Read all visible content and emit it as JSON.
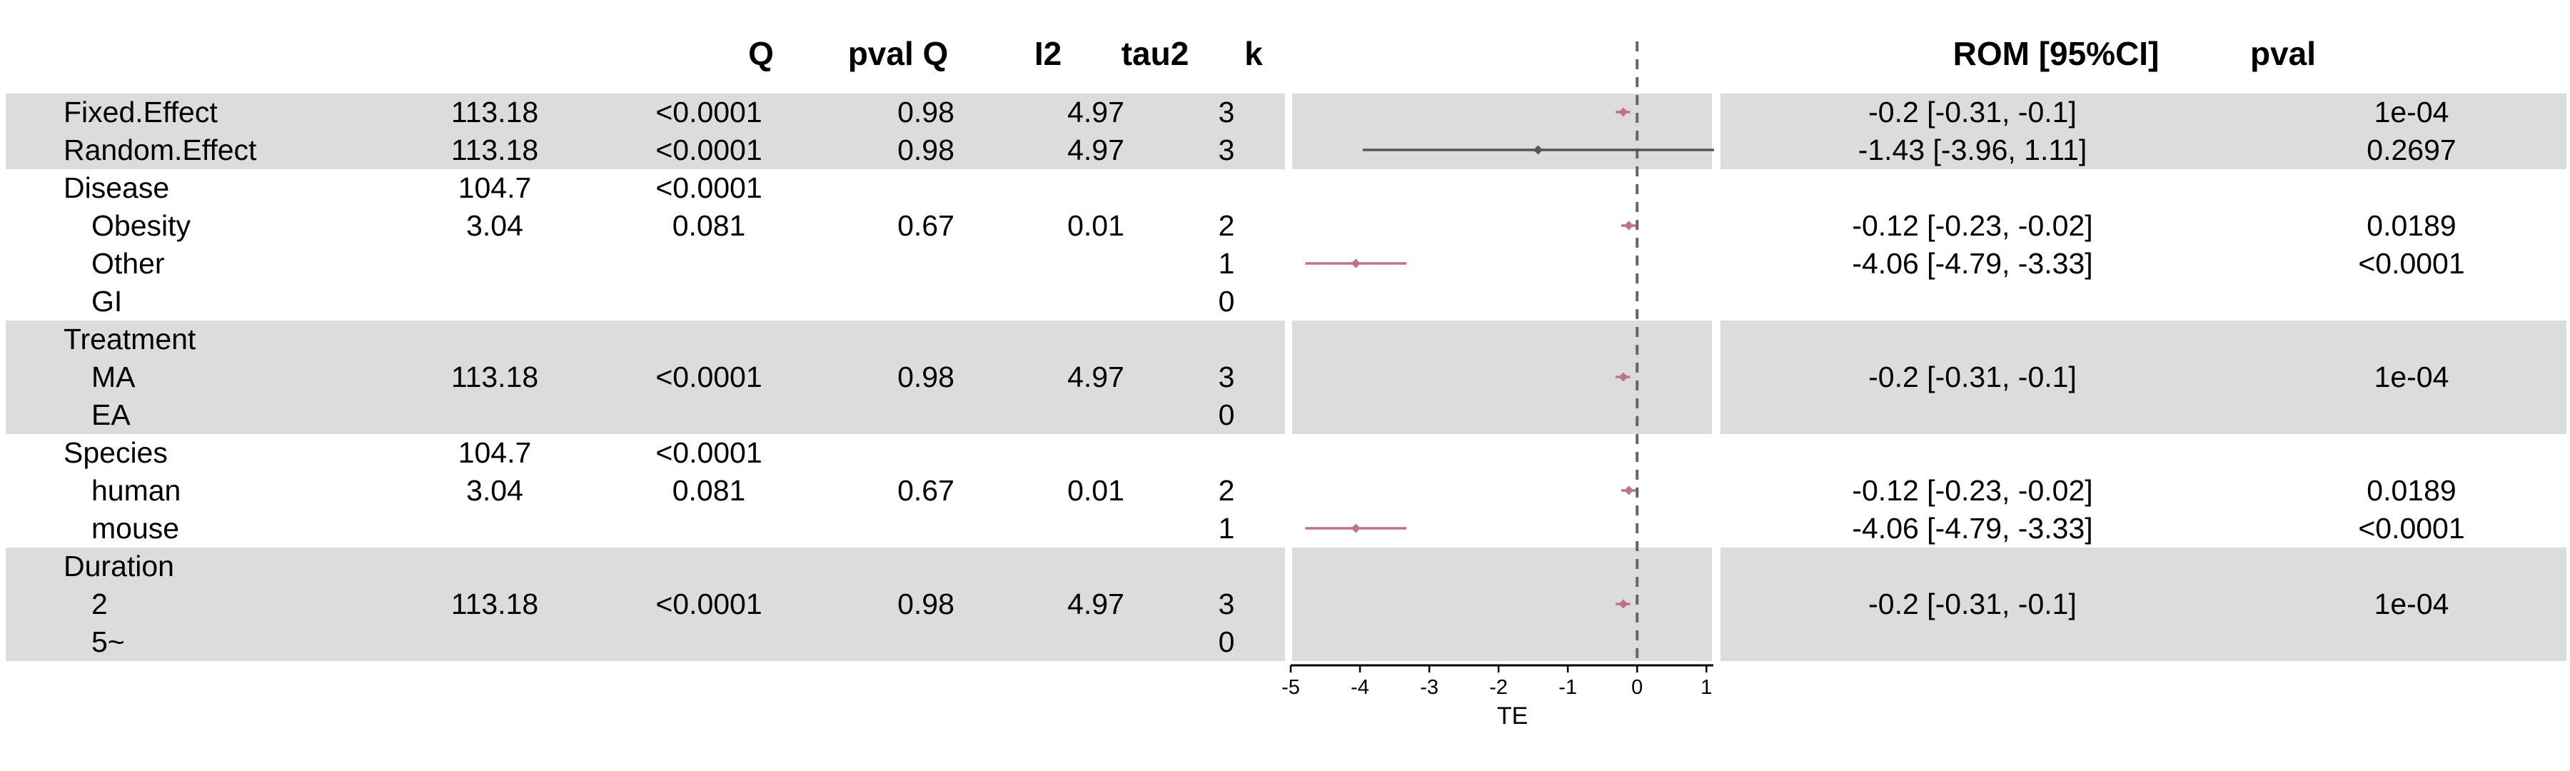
{
  "headers": {
    "Q": "Q",
    "pvalQ": "pval Q",
    "I2": "I2",
    "tau2": "tau2",
    "k": "k",
    "rom": "ROM [95%CI]",
    "pval": "pval"
  },
  "rows": [
    {
      "label": "Fixed.Effect",
      "indent": false,
      "shaded": true,
      "Q": "113.18",
      "pvalQ": "<0.0001",
      "I2": "0.98",
      "tau2": "4.97",
      "k": "3",
      "rom": "-0.2 [-0.31, -0.1]",
      "pval": "1e-04"
    },
    {
      "label": "Random.Effect",
      "indent": false,
      "shaded": true,
      "Q": "113.18",
      "pvalQ": "<0.0001",
      "I2": "0.98",
      "tau2": "4.97",
      "k": "3",
      "rom": "-1.43 [-3.96, 1.11]",
      "pval": "0.2697"
    },
    {
      "label": "Disease",
      "indent": false,
      "shaded": false,
      "Q": "104.7",
      "pvalQ": "<0.0001",
      "I2": "",
      "tau2": "",
      "k": "",
      "rom": "",
      "pval": ""
    },
    {
      "label": "Obesity",
      "indent": true,
      "shaded": false,
      "Q": "3.04",
      "pvalQ": "0.081",
      "I2": "0.67",
      "tau2": "0.01",
      "k": "2",
      "rom": "-0.12 [-0.23, -0.02]",
      "pval": "0.0189"
    },
    {
      "label": "Other",
      "indent": true,
      "shaded": false,
      "Q": "",
      "pvalQ": "",
      "I2": "",
      "tau2": "",
      "k": "1",
      "rom": "-4.06 [-4.79, -3.33]",
      "pval": "<0.0001"
    },
    {
      "label": "GI",
      "indent": true,
      "shaded": false,
      "Q": "",
      "pvalQ": "",
      "I2": "",
      "tau2": "",
      "k": "0",
      "rom": "",
      "pval": ""
    },
    {
      "label": "Treatment",
      "indent": false,
      "shaded": true,
      "Q": "",
      "pvalQ": "",
      "I2": "",
      "tau2": "",
      "k": "",
      "rom": "",
      "pval": ""
    },
    {
      "label": "MA",
      "indent": true,
      "shaded": true,
      "Q": "113.18",
      "pvalQ": "<0.0001",
      "I2": "0.98",
      "tau2": "4.97",
      "k": "3",
      "rom": "-0.2 [-0.31, -0.1]",
      "pval": "1e-04"
    },
    {
      "label": "EA",
      "indent": true,
      "shaded": true,
      "Q": "",
      "pvalQ": "",
      "I2": "",
      "tau2": "",
      "k": "0",
      "rom": "",
      "pval": ""
    },
    {
      "label": "Species",
      "indent": false,
      "shaded": false,
      "Q": "104.7",
      "pvalQ": "<0.0001",
      "I2": "",
      "tau2": "",
      "k": "",
      "rom": "",
      "pval": ""
    },
    {
      "label": "human",
      "indent": true,
      "shaded": false,
      "Q": "3.04",
      "pvalQ": "0.081",
      "I2": "0.67",
      "tau2": "0.01",
      "k": "2",
      "rom": "-0.12 [-0.23, -0.02]",
      "pval": "0.0189"
    },
    {
      "label": "mouse",
      "indent": true,
      "shaded": false,
      "Q": "",
      "pvalQ": "",
      "I2": "",
      "tau2": "",
      "k": "1",
      "rom": "-4.06 [-4.79, -3.33]",
      "pval": "<0.0001"
    },
    {
      "label": "Duration",
      "indent": false,
      "shaded": true,
      "Q": "",
      "pvalQ": "",
      "I2": "",
      "tau2": "",
      "k": "",
      "rom": "",
      "pval": ""
    },
    {
      "label": "2",
      "indent": true,
      "shaded": true,
      "Q": "113.18",
      "pvalQ": "<0.0001",
      "I2": "0.98",
      "tau2": "4.97",
      "k": "3",
      "rom": "-0.2 [-0.31, -0.1]",
      "pval": "1e-04"
    },
    {
      "label": "5~",
      "indent": true,
      "shaded": true,
      "Q": "",
      "pvalQ": "",
      "I2": "",
      "tau2": "",
      "k": "0",
      "rom": "",
      "pval": ""
    }
  ],
  "chart_data": {
    "type": "forest",
    "xlabel": "TE",
    "xlim": [
      -5,
      1.1
    ],
    "xticks": [
      -5,
      -4,
      -3,
      -2,
      -1,
      0,
      1
    ],
    "reference_line": 0,
    "colors": {
      "subgroup": "#c0728a",
      "random": "#555555",
      "reference": "#666666",
      "band": "#dcdcdc"
    },
    "estimates": [
      {
        "row": 0,
        "est": -0.2,
        "lo": -0.31,
        "hi": -0.1,
        "kind": "fixed"
      },
      {
        "row": 1,
        "est": -1.43,
        "lo": -3.96,
        "hi": 1.11,
        "kind": "random"
      },
      {
        "row": 3,
        "est": -0.12,
        "lo": -0.23,
        "hi": -0.02,
        "kind": "subgroup"
      },
      {
        "row": 4,
        "est": -4.06,
        "lo": -4.79,
        "hi": -3.33,
        "kind": "subgroup"
      },
      {
        "row": 7,
        "est": -0.2,
        "lo": -0.31,
        "hi": -0.1,
        "kind": "subgroup"
      },
      {
        "row": 10,
        "est": -0.12,
        "lo": -0.23,
        "hi": -0.02,
        "kind": "subgroup"
      },
      {
        "row": 11,
        "est": -4.06,
        "lo": -4.79,
        "hi": -3.33,
        "kind": "subgroup"
      },
      {
        "row": 13,
        "est": -0.2,
        "lo": -0.31,
        "hi": -0.1,
        "kind": "subgroup"
      }
    ]
  }
}
